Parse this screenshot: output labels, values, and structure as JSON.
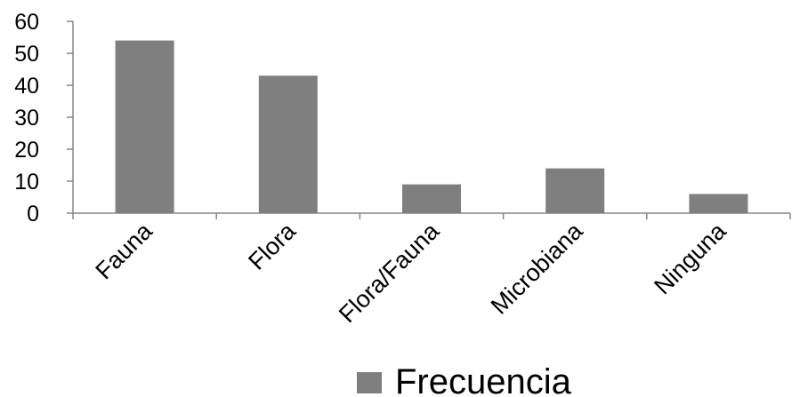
{
  "chart_data": {
    "type": "bar",
    "categories": [
      "Fauna",
      "Flora",
      "Flora/Fauna",
      "Microbiana",
      "Ninguna"
    ],
    "series": [
      {
        "name": "Frecuencia",
        "values": [
          54,
          43,
          9,
          14,
          6
        ]
      }
    ],
    "ylim": [
      0,
      60
    ],
    "yticks": [
      0,
      10,
      20,
      30,
      40,
      50,
      60
    ],
    "grid": false,
    "legend_position": "bottom",
    "bar_color": "#7f7f7f",
    "axis_color": "#868686"
  }
}
